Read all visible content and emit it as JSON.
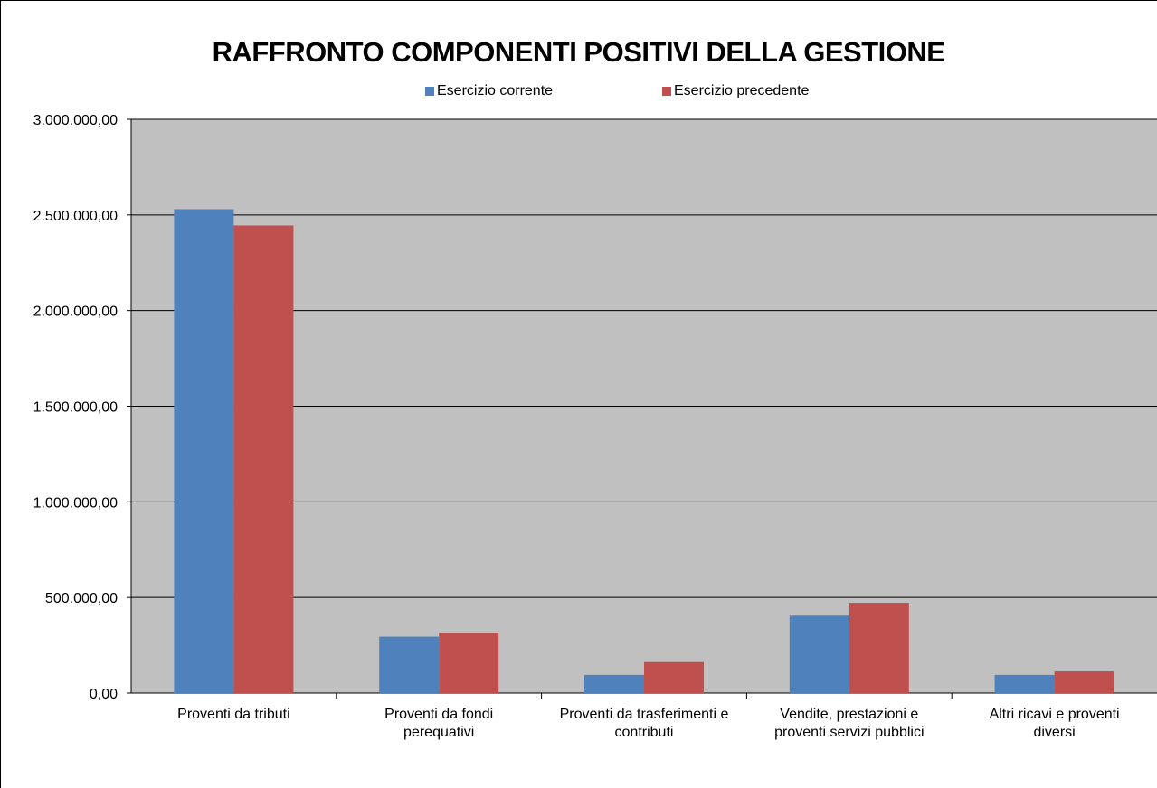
{
  "chart_data": {
    "type": "bar",
    "title": "RAFFRONTO COMPONENTI POSITIVI DELLA GESTIONE",
    "categories": [
      [
        "Proventi da tributi"
      ],
      [
        "Proventi da fondi",
        "perequativi"
      ],
      [
        "Proventi da trasferimenti e",
        "contributi"
      ],
      [
        "Vendite, prestazioni e",
        "proventi servizi pubblici"
      ],
      [
        "Altri ricavi e proventi",
        "diversi"
      ]
    ],
    "series": [
      {
        "name": "Esercizio corrente",
        "color": "#4f81bd",
        "values": [
          2530000,
          295000,
          95000,
          405000,
          95000
        ]
      },
      {
        "name": "Esercizio precedente",
        "color": "#c0504d",
        "values": [
          2445000,
          315000,
          162000,
          472000,
          113000
        ]
      }
    ],
    "ylim": [
      0,
      3000000
    ],
    "yticks": [
      0,
      500000,
      1000000,
      1500000,
      2000000,
      2500000,
      3000000
    ],
    "ytick_labels": [
      "0,00",
      "500.000,00",
      "1.000.000,00",
      "1.500.000,00",
      "2.000.000,00",
      "2.500.000,00",
      "3.000.000,00"
    ],
    "plot_background": "#c0c0c0",
    "grid": true,
    "legend_position": "top"
  }
}
